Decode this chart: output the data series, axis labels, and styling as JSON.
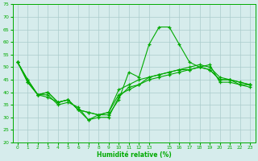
{
  "title": "",
  "xlabel": "Humidité relative (%)",
  "ylabel": "",
  "bg_color": "#d6ecec",
  "grid_color": "#aacccc",
  "line_color": "#00aa00",
  "ylim": [
    20,
    75
  ],
  "xlim": [
    -0.5,
    23.5
  ],
  "yticks": [
    20,
    25,
    30,
    35,
    40,
    45,
    50,
    55,
    60,
    65,
    70,
    75
  ],
  "xticks": [
    0,
    1,
    2,
    3,
    4,
    5,
    6,
    7,
    8,
    9,
    10,
    11,
    12,
    13,
    15,
    16,
    17,
    18,
    19,
    20,
    21,
    22,
    23
  ],
  "xticklabels": [
    "0",
    "1",
    "2",
    "3",
    "4",
    "5",
    "6",
    "7",
    "8",
    "9",
    "10",
    "11",
    "12",
    "13",
    "15",
    "16",
    "17",
    "18",
    "19",
    "20",
    "21",
    "22",
    "23"
  ],
  "series": [
    [
      52,
      45,
      39,
      38,
      36,
      37,
      33,
      29,
      31,
      31,
      37,
      48,
      46,
      59,
      66,
      66,
      59,
      52,
      50,
      49,
      45,
      45,
      43,
      43
    ],
    [
      52,
      45,
      39,
      39,
      35,
      36,
      34,
      29,
      30,
      30,
      38,
      42,
      43,
      46,
      47,
      48,
      49,
      49,
      50,
      51,
      44,
      44,
      43,
      42
    ],
    [
      52,
      44,
      39,
      40,
      36,
      37,
      33,
      32,
      31,
      32,
      39,
      41,
      43,
      45,
      46,
      47,
      48,
      49,
      50,
      49,
      45,
      45,
      44,
      43
    ],
    [
      52,
      44,
      39,
      40,
      36,
      37,
      33,
      32,
      31,
      32,
      41,
      43,
      45,
      46,
      47,
      48,
      49,
      50,
      51,
      50,
      46,
      45,
      44,
      43
    ]
  ],
  "series_x": [
    0,
    1,
    2,
    3,
    4,
    5,
    6,
    7,
    8,
    9,
    10,
    11,
    12,
    13,
    14,
    15,
    16,
    17,
    18,
    19,
    20,
    21,
    22,
    23
  ]
}
